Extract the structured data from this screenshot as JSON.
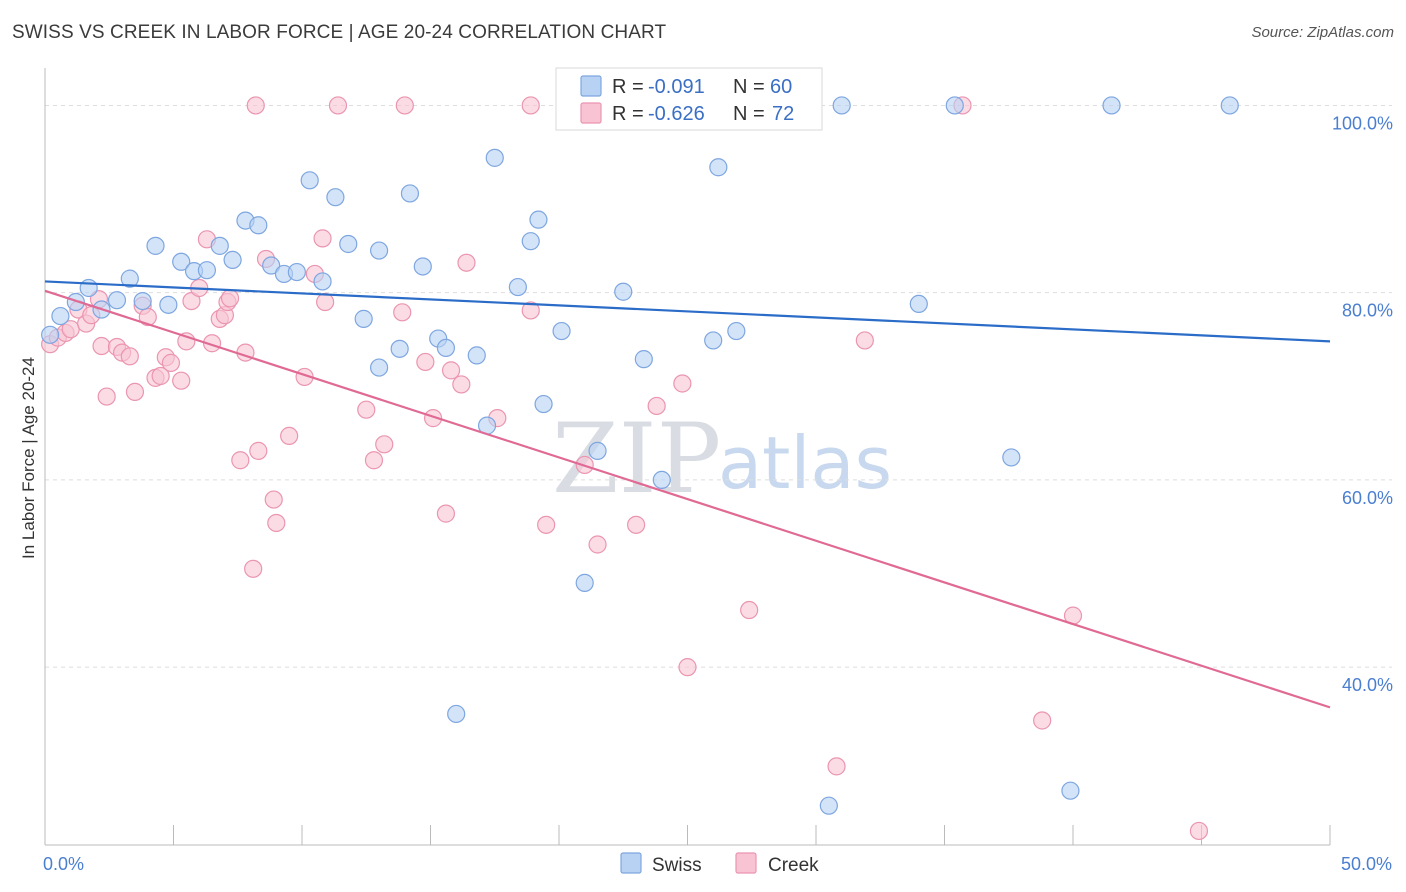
{
  "title": "SWISS VS CREEK IN LABOR FORCE | AGE 20-24 CORRELATION CHART",
  "source": "Source: ZipAtlas.com",
  "watermark": {
    "zip": "ZIP",
    "atlas": "atlas"
  },
  "colors": {
    "swiss_fill": "#b8d2f3",
    "swiss_stroke": "#7ea6e0",
    "swiss_line": "#2a6cc8",
    "creek_fill": "#f8c4d4",
    "creek_stroke": "#eb95b0",
    "creek_line": "#e06a94",
    "axis_label": "#4a7fd0",
    "grid": "#dddddd"
  },
  "legend": {
    "rows": [
      {
        "series": "Swiss",
        "r_label": "R = ",
        "r_value": "-0.091",
        "n_label": "N = ",
        "n_value": "60"
      },
      {
        "series": "Creek",
        "r_label": "R = ",
        "r_value": "-0.626",
        "n_label": "N = ",
        "n_value": "72"
      }
    ]
  },
  "chart_data": {
    "type": "scatter",
    "title": "SWISS VS CREEK IN LABOR FORCE | AGE 20-24 CORRELATION CHART",
    "xlabel": "",
    "ylabel": "In Labor Force | Age 20-24",
    "xlim": [
      0,
      50
    ],
    "ylim": [
      21,
      104
    ],
    "x_tick_labels": [
      {
        "value": 0,
        "label": "0.0%"
      },
      {
        "value": 50,
        "label": "50.0%"
      }
    ],
    "y_tick_labels": [
      {
        "value": 100,
        "label": "100.0%"
      },
      {
        "value": 80,
        "label": "80.0%"
      },
      {
        "value": 60,
        "label": "60.0%"
      },
      {
        "value": 40,
        "label": "40.0%"
      }
    ],
    "grid": "horizontal dashed",
    "legend_position": "top-center",
    "series": [
      {
        "name": "Swiss",
        "trend": {
          "x": [
            0,
            50
          ],
          "y": [
            81.2,
            74.8
          ]
        },
        "points": [
          [
            0.2,
            75.5
          ],
          [
            0.6,
            77.5
          ],
          [
            1.2,
            79.0
          ],
          [
            1.7,
            80.5
          ],
          [
            2.2,
            78.2
          ],
          [
            2.8,
            79.2
          ],
          [
            3.3,
            81.5
          ],
          [
            3.8,
            79.1
          ],
          [
            4.3,
            85.0
          ],
          [
            4.8,
            78.7
          ],
          [
            5.3,
            83.3
          ],
          [
            5.8,
            82.3
          ],
          [
            6.3,
            82.4
          ],
          [
            6.8,
            85.0
          ],
          [
            7.3,
            83.5
          ],
          [
            7.8,
            87.7
          ],
          [
            8.3,
            87.2
          ],
          [
            8.8,
            82.9
          ],
          [
            9.3,
            82.0
          ],
          [
            9.8,
            82.2
          ],
          [
            10.3,
            92.0
          ],
          [
            10.8,
            81.2
          ],
          [
            11.3,
            90.2
          ],
          [
            11.8,
            85.2
          ],
          [
            12.4,
            77.2
          ],
          [
            13.0,
            84.5
          ],
          [
            13.0,
            72.0
          ],
          [
            13.8,
            74.0
          ],
          [
            14.2,
            90.6
          ],
          [
            14.7,
            82.8
          ],
          [
            15.3,
            75.1
          ],
          [
            15.6,
            74.1
          ],
          [
            16.8,
            73.3
          ],
          [
            17.2,
            65.8
          ],
          [
            17.5,
            94.4
          ],
          [
            18.4,
            80.6
          ],
          [
            18.9,
            85.5
          ],
          [
            19.2,
            87.8
          ],
          [
            19.4,
            68.1
          ],
          [
            20.1,
            75.9
          ],
          [
            21.0,
            49.0
          ],
          [
            21.5,
            63.1
          ],
          [
            22.5,
            80.1
          ],
          [
            23.2,
            100.0
          ],
          [
            23.3,
            72.9
          ],
          [
            24.0,
            60.0
          ],
          [
            25.0,
            100.0
          ],
          [
            26.0,
            74.9
          ],
          [
            26.2,
            93.4
          ],
          [
            26.9,
            75.9
          ],
          [
            29.3,
            100.0
          ],
          [
            30.5,
            25.2
          ],
          [
            31.0,
            100.0
          ],
          [
            34.0,
            78.8
          ],
          [
            35.4,
            100.0
          ],
          [
            37.6,
            62.4
          ],
          [
            39.9,
            26.8
          ],
          [
            41.5,
            100.0
          ],
          [
            46.1,
            100.0
          ],
          [
            16.0,
            35.0
          ]
        ]
      },
      {
        "name": "Creek",
        "trend": {
          "x": [
            0,
            50
          ],
          "y": [
            80.2,
            35.7
          ]
        },
        "points": [
          [
            0.2,
            74.5
          ],
          [
            0.5,
            75.2
          ],
          [
            0.8,
            75.7
          ],
          [
            1.0,
            76.1
          ],
          [
            1.3,
            78.2
          ],
          [
            1.6,
            76.7
          ],
          [
            1.8,
            77.6
          ],
          [
            2.1,
            79.3
          ],
          [
            2.2,
            74.3
          ],
          [
            2.4,
            68.9
          ],
          [
            2.8,
            74.2
          ],
          [
            3.0,
            73.6
          ],
          [
            3.3,
            73.2
          ],
          [
            3.5,
            69.4
          ],
          [
            3.8,
            78.6
          ],
          [
            4.0,
            77.4
          ],
          [
            4.3,
            70.9
          ],
          [
            4.5,
            71.1
          ],
          [
            4.7,
            73.1
          ],
          [
            4.9,
            72.5
          ],
          [
            5.3,
            70.6
          ],
          [
            5.5,
            74.8
          ],
          [
            5.7,
            79.1
          ],
          [
            6.0,
            80.5
          ],
          [
            6.3,
            85.7
          ],
          [
            6.5,
            74.6
          ],
          [
            6.8,
            77.2
          ],
          [
            7.0,
            77.6
          ],
          [
            7.1,
            79.0
          ],
          [
            7.2,
            79.4
          ],
          [
            7.6,
            62.1
          ],
          [
            7.8,
            73.6
          ],
          [
            8.1,
            50.5
          ],
          [
            8.3,
            63.1
          ],
          [
            8.6,
            83.6
          ],
          [
            8.9,
            57.9
          ],
          [
            9.0,
            55.4
          ],
          [
            9.5,
            64.7
          ],
          [
            10.1,
            71.0
          ],
          [
            10.5,
            82.0
          ],
          [
            10.8,
            85.8
          ],
          [
            10.9,
            79.0
          ],
          [
            12.5,
            67.5
          ],
          [
            12.8,
            62.1
          ],
          [
            13.2,
            63.8
          ],
          [
            13.9,
            77.9
          ],
          [
            14.0,
            100.0
          ],
          [
            14.8,
            72.6
          ],
          [
            15.1,
            66.6
          ],
          [
            15.6,
            56.4
          ],
          [
            15.8,
            71.7
          ],
          [
            16.2,
            70.2
          ],
          [
            16.4,
            83.2
          ],
          [
            17.6,
            66.6
          ],
          [
            18.9,
            78.1
          ],
          [
            18.9,
            100.0
          ],
          [
            19.5,
            55.2
          ],
          [
            21.0,
            61.6
          ],
          [
            21.5,
            53.1
          ],
          [
            23.0,
            55.2
          ],
          [
            23.8,
            67.9
          ],
          [
            24.8,
            70.3
          ],
          [
            25.0,
            40.0
          ],
          [
            27.4,
            46.1
          ],
          [
            30.8,
            29.4
          ],
          [
            31.9,
            74.9
          ],
          [
            35.7,
            100.0
          ],
          [
            38.8,
            34.3
          ],
          [
            40.0,
            45.5
          ],
          [
            44.9,
            22.5
          ],
          [
            8.2,
            100.0
          ],
          [
            11.4,
            100.0
          ]
        ]
      }
    ]
  },
  "bottom_legend": [
    {
      "series": "Swiss",
      "label": "Swiss"
    },
    {
      "series": "Creek",
      "label": "Creek"
    }
  ]
}
